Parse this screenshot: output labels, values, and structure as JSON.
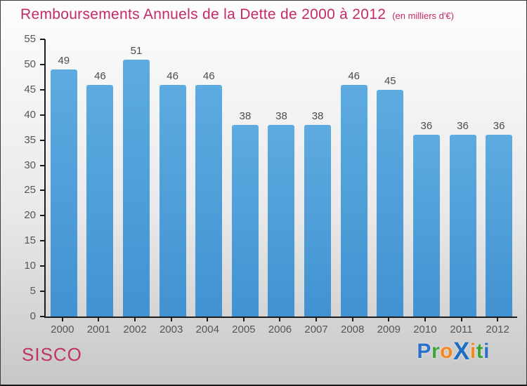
{
  "header": {
    "title": "Remboursements Annuels de la Dette de 2000 à 2012",
    "subtitle": "(en milliers d'€)"
  },
  "footer": {
    "left_label": "SISCO",
    "logo": {
      "name": "Proxiti",
      "letters": [
        {
          "ch": "P",
          "color": "#2a6fc9",
          "big": false
        },
        {
          "ch": "r",
          "color": "#3fa33c",
          "big": false
        },
        {
          "ch": "o",
          "color": "#f6871f",
          "big": false
        },
        {
          "ch": "X",
          "color": "#1d6fc4",
          "big": true
        },
        {
          "ch": "i",
          "color": "#f6871f",
          "big": false
        },
        {
          "ch": "t",
          "color": "#3fa33c",
          "big": false
        },
        {
          "ch": "i",
          "color": "#2a6fc9",
          "big": false
        }
      ]
    }
  },
  "colors": {
    "title_pink": "#c42a6a",
    "sisco_pink": "#c03366",
    "bar_gradient_top": "#5dabe0",
    "bar_gradient_bottom": "#4292d2",
    "value_label": "#4c4c4c",
    "axis_label": "#555555",
    "axis_line": "#1c1c1c"
  },
  "chart_data": {
    "type": "bar",
    "title": "Remboursements Annuels de la Dette de 2000 à 2012",
    "subtitle": "(en milliers d'€)",
    "categories": [
      "2000",
      "2001",
      "2002",
      "2003",
      "2004",
      "2005",
      "2006",
      "2007",
      "2008",
      "2009",
      "2010",
      "2011",
      "2012"
    ],
    "values": [
      49,
      46,
      51,
      46,
      46,
      38,
      38,
      38,
      46,
      45,
      36,
      36,
      36
    ],
    "xlabel": "",
    "ylabel": "",
    "ylim": [
      0,
      55
    ],
    "ytick_step": 5,
    "grid": false,
    "legend": "none",
    "data_labels": true
  }
}
